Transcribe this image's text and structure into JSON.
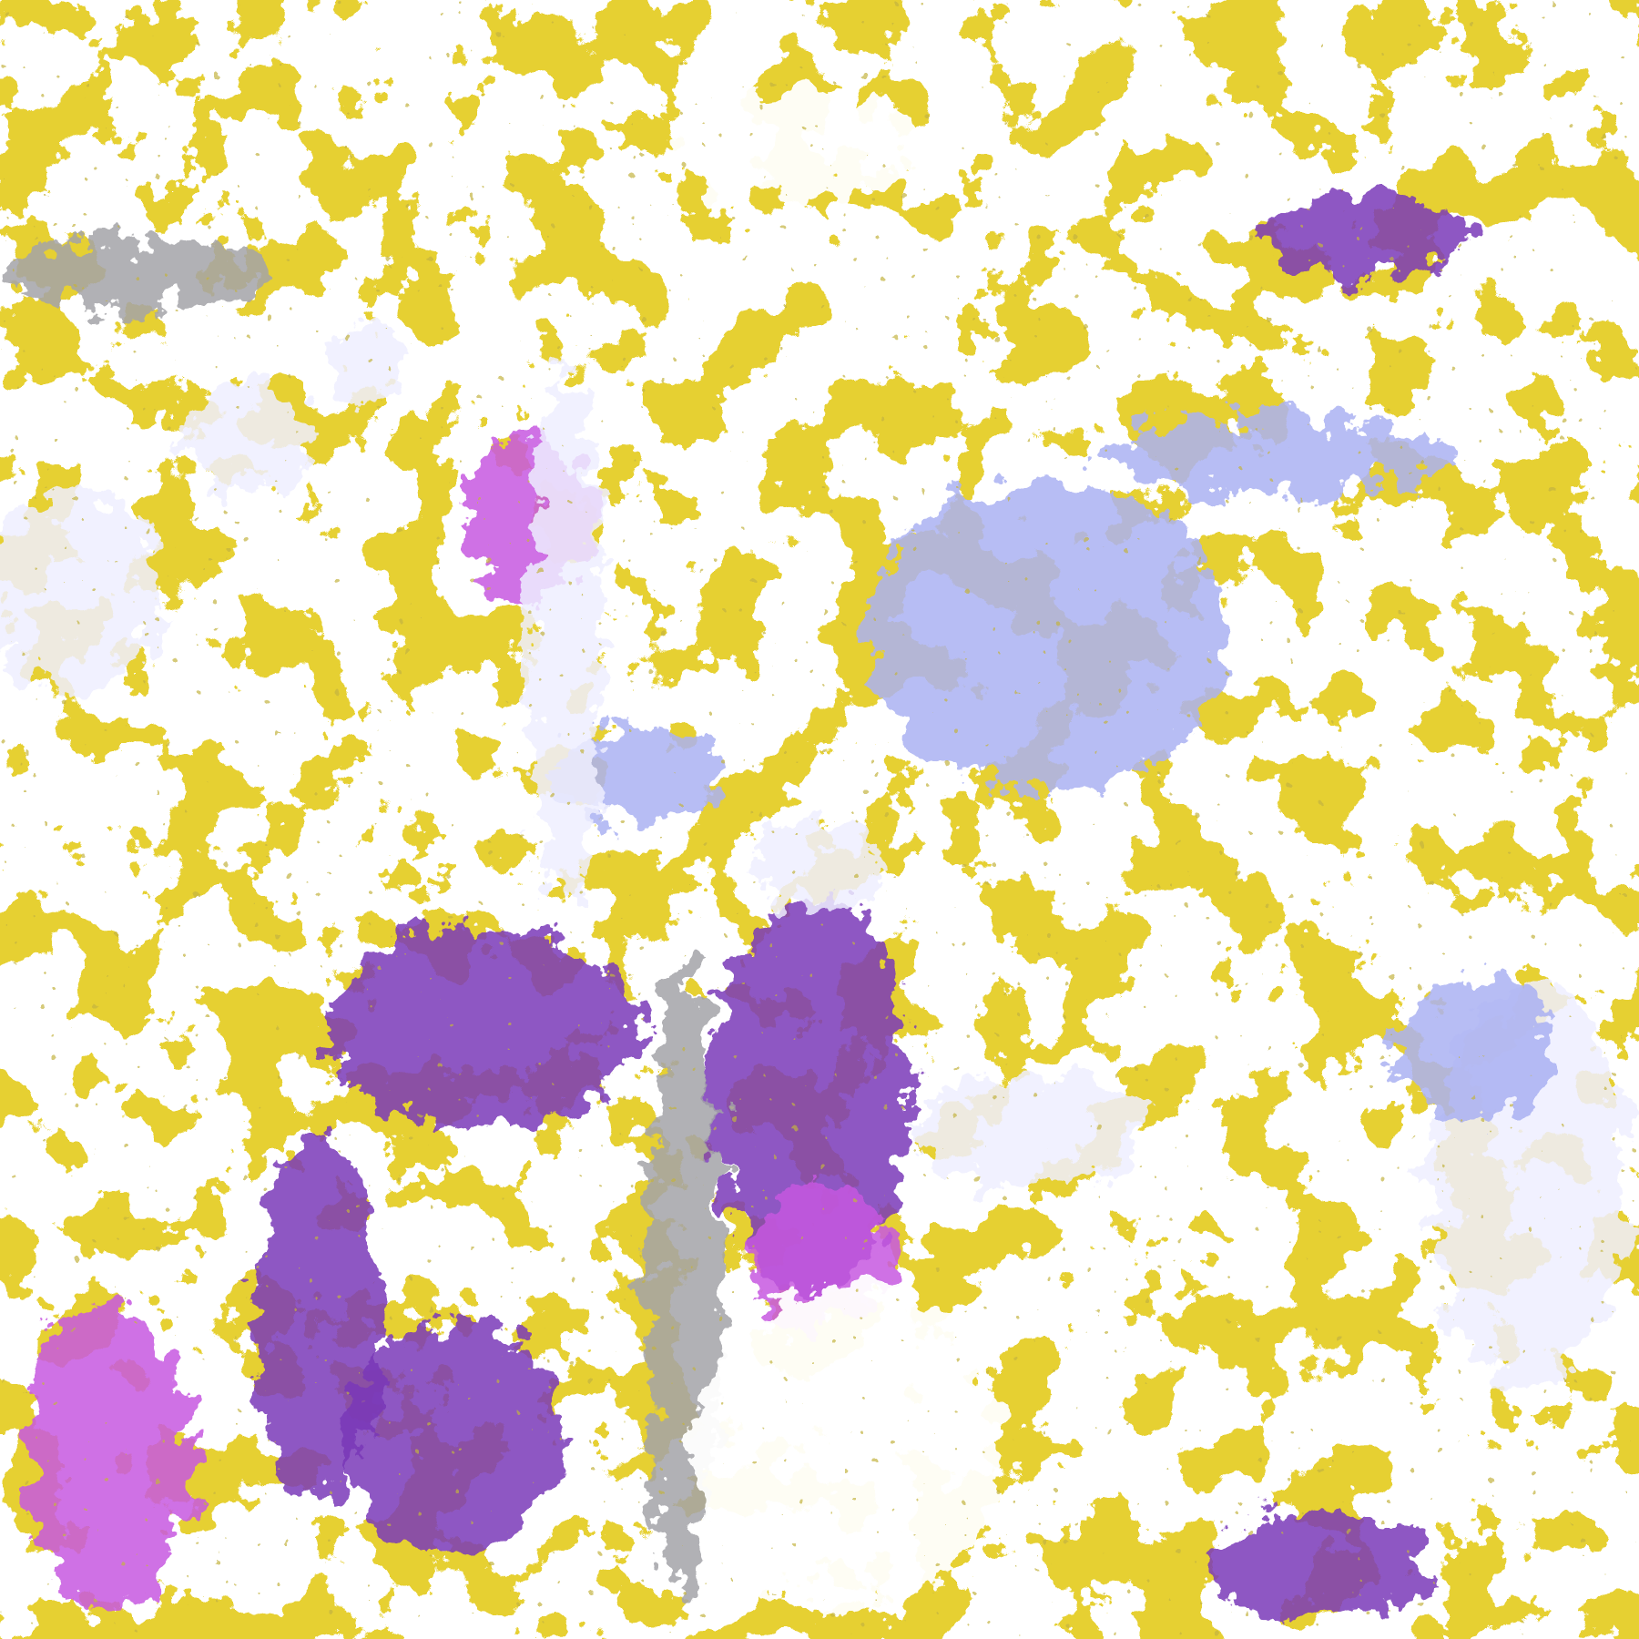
{
  "image": {
    "kind": "classified satellite cloud/surface imagery",
    "palette": {
      "background": "#ffffff",
      "gold": "#c9a008",
      "dark_purple": "#7a3ab8",
      "magenta": "#c758e0",
      "lavender": "#eeeeff",
      "periwinkle": "#aab2f2",
      "gray": "#a3a3a8"
    }
  }
}
